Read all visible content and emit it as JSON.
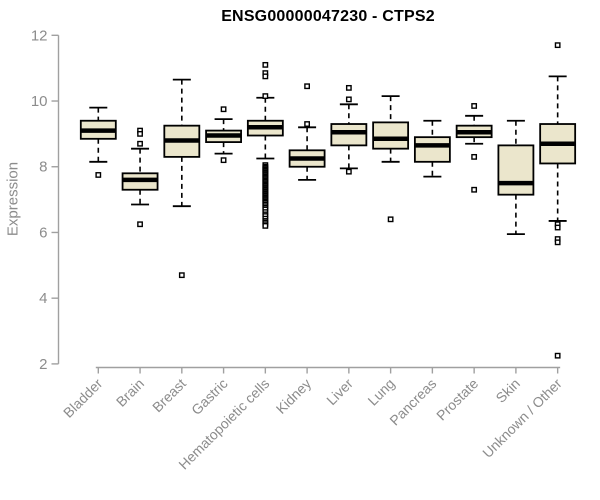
{
  "figure": {
    "background": "#ffffff"
  },
  "chart_data": {
    "type": "boxplot",
    "title": "ENSG00000047230 - CTPS2",
    "ylabel": "Expression",
    "xlabel": "",
    "ylim": [
      2,
      12
    ],
    "yticks": [
      2,
      4,
      6,
      8,
      10,
      12
    ],
    "grid": false,
    "legend": "none",
    "box_fill": "#ebe6cc",
    "box_stroke": "#000000",
    "median_color": "#000000",
    "whisker_style": "dashed",
    "axis_color": "#a0a0a0",
    "tick_label_color": "#8c8c8c",
    "title_color": "#000000",
    "categories": [
      "Bladder",
      "Brain",
      "Breast",
      "Gastric",
      "Hematopoietic cells",
      "Kidney",
      "Liver",
      "Lung",
      "Pancreas",
      "Prostate",
      "Skin",
      "Unknown / Other"
    ],
    "series": [
      {
        "name": "Bladder",
        "whisker_low": 8.15,
        "q1": 8.85,
        "median": 9.1,
        "q3": 9.4,
        "whisker_high": 9.8,
        "outliers": [
          7.75
        ]
      },
      {
        "name": "Brain",
        "whisker_low": 6.85,
        "q1": 7.3,
        "median": 7.6,
        "q3": 7.8,
        "whisker_high": 8.55,
        "outliers": [
          9.1,
          9.0,
          8.7,
          6.25
        ]
      },
      {
        "name": "Breast",
        "whisker_low": 6.8,
        "q1": 8.3,
        "median": 8.8,
        "q3": 9.25,
        "whisker_high": 10.65,
        "outliers": [
          4.7
        ]
      },
      {
        "name": "Gastric",
        "whisker_low": 8.4,
        "q1": 8.75,
        "median": 8.95,
        "q3": 9.1,
        "whisker_high": 9.45,
        "outliers": [
          9.75,
          8.2
        ]
      },
      {
        "name": "Hematopoietic cells",
        "whisker_low": 8.25,
        "q1": 8.95,
        "median": 9.2,
        "q3": 9.4,
        "whisker_high": 10.1,
        "outliers": [
          11.1,
          10.85,
          10.75,
          10.15,
          8.05,
          8.0,
          7.97,
          7.93,
          7.9,
          7.86,
          7.82,
          7.78,
          7.74,
          7.7,
          7.66,
          7.62,
          7.58,
          7.54,
          7.5,
          7.46,
          7.42,
          7.38,
          7.34,
          7.3,
          7.26,
          7.22,
          7.18,
          7.14,
          7.1,
          7.06,
          7.02,
          6.98,
          6.94,
          6.9,
          6.85,
          6.8,
          6.75,
          6.7,
          6.62,
          6.55,
          6.5,
          6.42,
          6.35,
          6.3,
          6.25,
          6.2
        ]
      },
      {
        "name": "Kidney",
        "whisker_low": 7.6,
        "q1": 8.0,
        "median": 8.25,
        "q3": 8.5,
        "whisker_high": 9.2,
        "outliers": [
          10.45,
          9.3
        ]
      },
      {
        "name": "Liver",
        "whisker_low": 7.95,
        "q1": 8.65,
        "median": 9.05,
        "q3": 9.3,
        "whisker_high": 9.9,
        "outliers": [
          10.4,
          10.05,
          7.85
        ]
      },
      {
        "name": "Lung",
        "whisker_low": 8.15,
        "q1": 8.55,
        "median": 8.85,
        "q3": 9.35,
        "whisker_high": 10.15,
        "outliers": [
          6.4
        ]
      },
      {
        "name": "Pancreas",
        "whisker_low": 7.7,
        "q1": 8.15,
        "median": 8.65,
        "q3": 8.9,
        "whisker_high": 9.4,
        "outliers": []
      },
      {
        "name": "Prostate",
        "whisker_low": 8.7,
        "q1": 8.9,
        "median": 9.05,
        "q3": 9.25,
        "whisker_high": 9.55,
        "outliers": [
          9.85,
          8.3,
          7.3
        ]
      },
      {
        "name": "Skin",
        "whisker_low": 5.95,
        "q1": 7.15,
        "median": 7.5,
        "q3": 8.65,
        "whisker_high": 9.4,
        "outliers": []
      },
      {
        "name": "Unknown / Other",
        "whisker_low": 6.35,
        "q1": 8.1,
        "median": 8.7,
        "q3": 9.3,
        "whisker_high": 10.75,
        "outliers": [
          11.7,
          6.25,
          6.15,
          5.8,
          5.7,
          2.25
        ]
      }
    ]
  }
}
